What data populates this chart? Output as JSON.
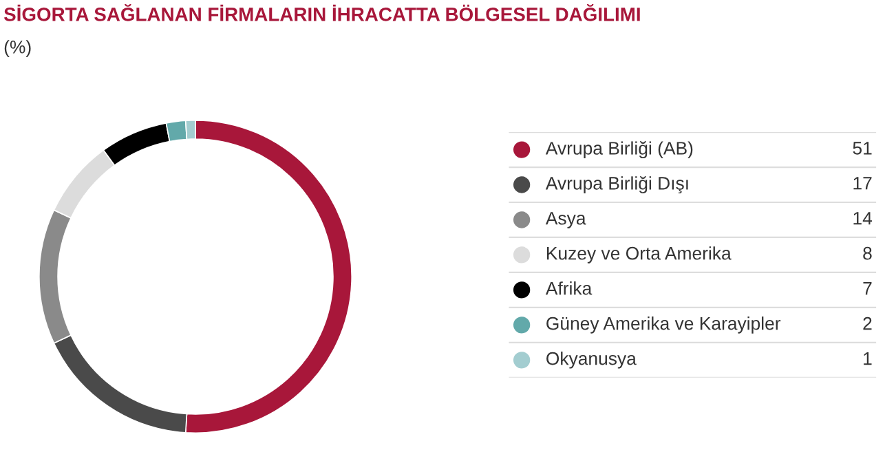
{
  "chart_data": {
    "type": "donut",
    "title": "SİGORTA SAĞLANAN FİRMALARIN İHRACATTA BÖLGESEL DAĞILIMI",
    "subtitle": "(%)",
    "categories": [
      "Avrupa Birliği (AB)",
      "Avrupa Birliği Dışı",
      "Asya",
      "Kuzey ve Orta Amerika",
      "Afrika",
      "Güney Amerika ve Karayipler",
      "Okyanusya"
    ],
    "values": [
      51,
      17,
      14,
      8,
      7,
      2,
      1
    ],
    "colors": [
      "#a8173a",
      "#4a4a4a",
      "#8a8a8a",
      "#dcdcdc",
      "#000000",
      "#62a9aa",
      "#a3cdd0"
    ],
    "data_labels": true,
    "legend": "right"
  }
}
